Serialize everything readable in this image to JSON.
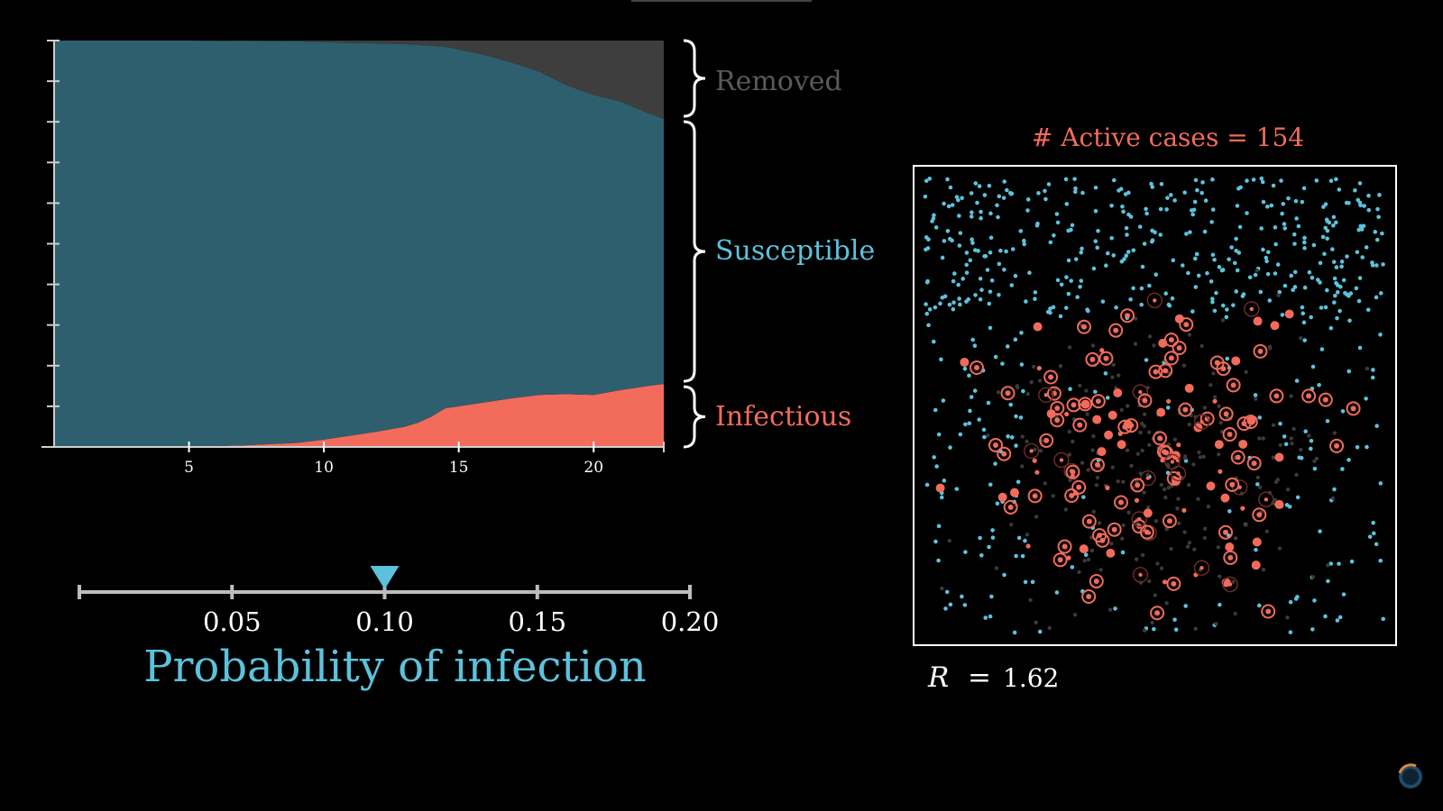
{
  "chart_data": [
    {
      "type": "area",
      "title": "",
      "xlabel": "",
      "ylabel": "",
      "xlim": [
        0,
        22.6
      ],
      "ylim": [
        0,
        1
      ],
      "x_ticks": [
        "5",
        "10",
        "15",
        "20"
      ],
      "x_tick_values": [
        5,
        10,
        15,
        20
      ],
      "stacked": true,
      "series": [
        {
          "name": "Infectious",
          "color": "#f26b5b",
          "x": [
            0,
            5,
            7,
            9,
            10,
            11,
            12,
            13,
            13.5,
            14,
            14.5,
            15,
            16,
            17,
            18,
            19,
            20,
            21,
            22,
            22.6
          ],
          "values": [
            0.0,
            0.0,
            0.004,
            0.01,
            0.018,
            0.028,
            0.038,
            0.05,
            0.06,
            0.075,
            0.095,
            0.1,
            0.11,
            0.12,
            0.128,
            0.13,
            0.128,
            0.14,
            0.15,
            0.155
          ]
        },
        {
          "name": "Susceptible",
          "color": "#2e5f6e",
          "x": [
            0,
            5,
            7,
            9,
            10,
            11,
            12,
            13,
            13.5,
            14,
            14.5,
            15,
            16,
            17,
            18,
            19,
            20,
            21,
            22,
            22.6
          ],
          "values": [
            1.0,
            1.0,
            0.995,
            0.988,
            0.978,
            0.966,
            0.955,
            0.941,
            0.929,
            0.912,
            0.89,
            0.878,
            0.854,
            0.825,
            0.795,
            0.76,
            0.738,
            0.71,
            0.672,
            0.652
          ]
        },
        {
          "name": "Removed",
          "color": "#3e3e3e",
          "x": [
            0,
            5,
            7,
            9,
            10,
            11,
            12,
            13,
            13.5,
            14,
            14.5,
            15,
            16,
            17,
            18,
            19,
            20,
            21,
            22,
            22.6
          ],
          "values": [
            0.0,
            0.0,
            0.001,
            0.002,
            0.004,
            0.006,
            0.007,
            0.009,
            0.011,
            0.013,
            0.015,
            0.022,
            0.036,
            0.055,
            0.077,
            0.11,
            0.134,
            0.15,
            0.178,
            0.193
          ]
        }
      ],
      "legend": [
        "Removed",
        "Susceptible",
        "Infectious"
      ]
    },
    {
      "type": "scatter",
      "title": "# Active cases = 154",
      "active_cases": 154,
      "xlim": [
        0,
        1
      ],
      "ylim": [
        0,
        1
      ],
      "points": {
        "susceptible_color": "#5cc2dc",
        "infectious_color": "#f26b5b",
        "removed_color": "#3a3a3a",
        "susceptible_count": 560,
        "infectious_count": 154,
        "removed_count": 230
      },
      "r_label": "R = 1.62",
      "r_value": "1.62"
    }
  ],
  "legend": {
    "removed": "Removed",
    "susceptible": "Susceptible",
    "infectious": "Infectious"
  },
  "slider": {
    "title": "Probability of infection",
    "min": 0,
    "max": 0.2,
    "value": 0.1,
    "ticks": [
      "0.05",
      "0.10",
      "0.15",
      "0.20"
    ],
    "tick_values": [
      0.05,
      0.1,
      0.15,
      0.2
    ],
    "color": "#5cc2dc"
  },
  "simulation": {
    "active_cases_label": "# Active cases = 154",
    "r_symbol": "R",
    "r_equals": "=",
    "r_value": "1.62"
  },
  "colors": {
    "susceptible": "#2e5f6e",
    "susceptible_text": "#5cc2dc",
    "infectious": "#f26b5b",
    "removed": "#3e3e3e",
    "removed_text": "#5a5a5a"
  }
}
